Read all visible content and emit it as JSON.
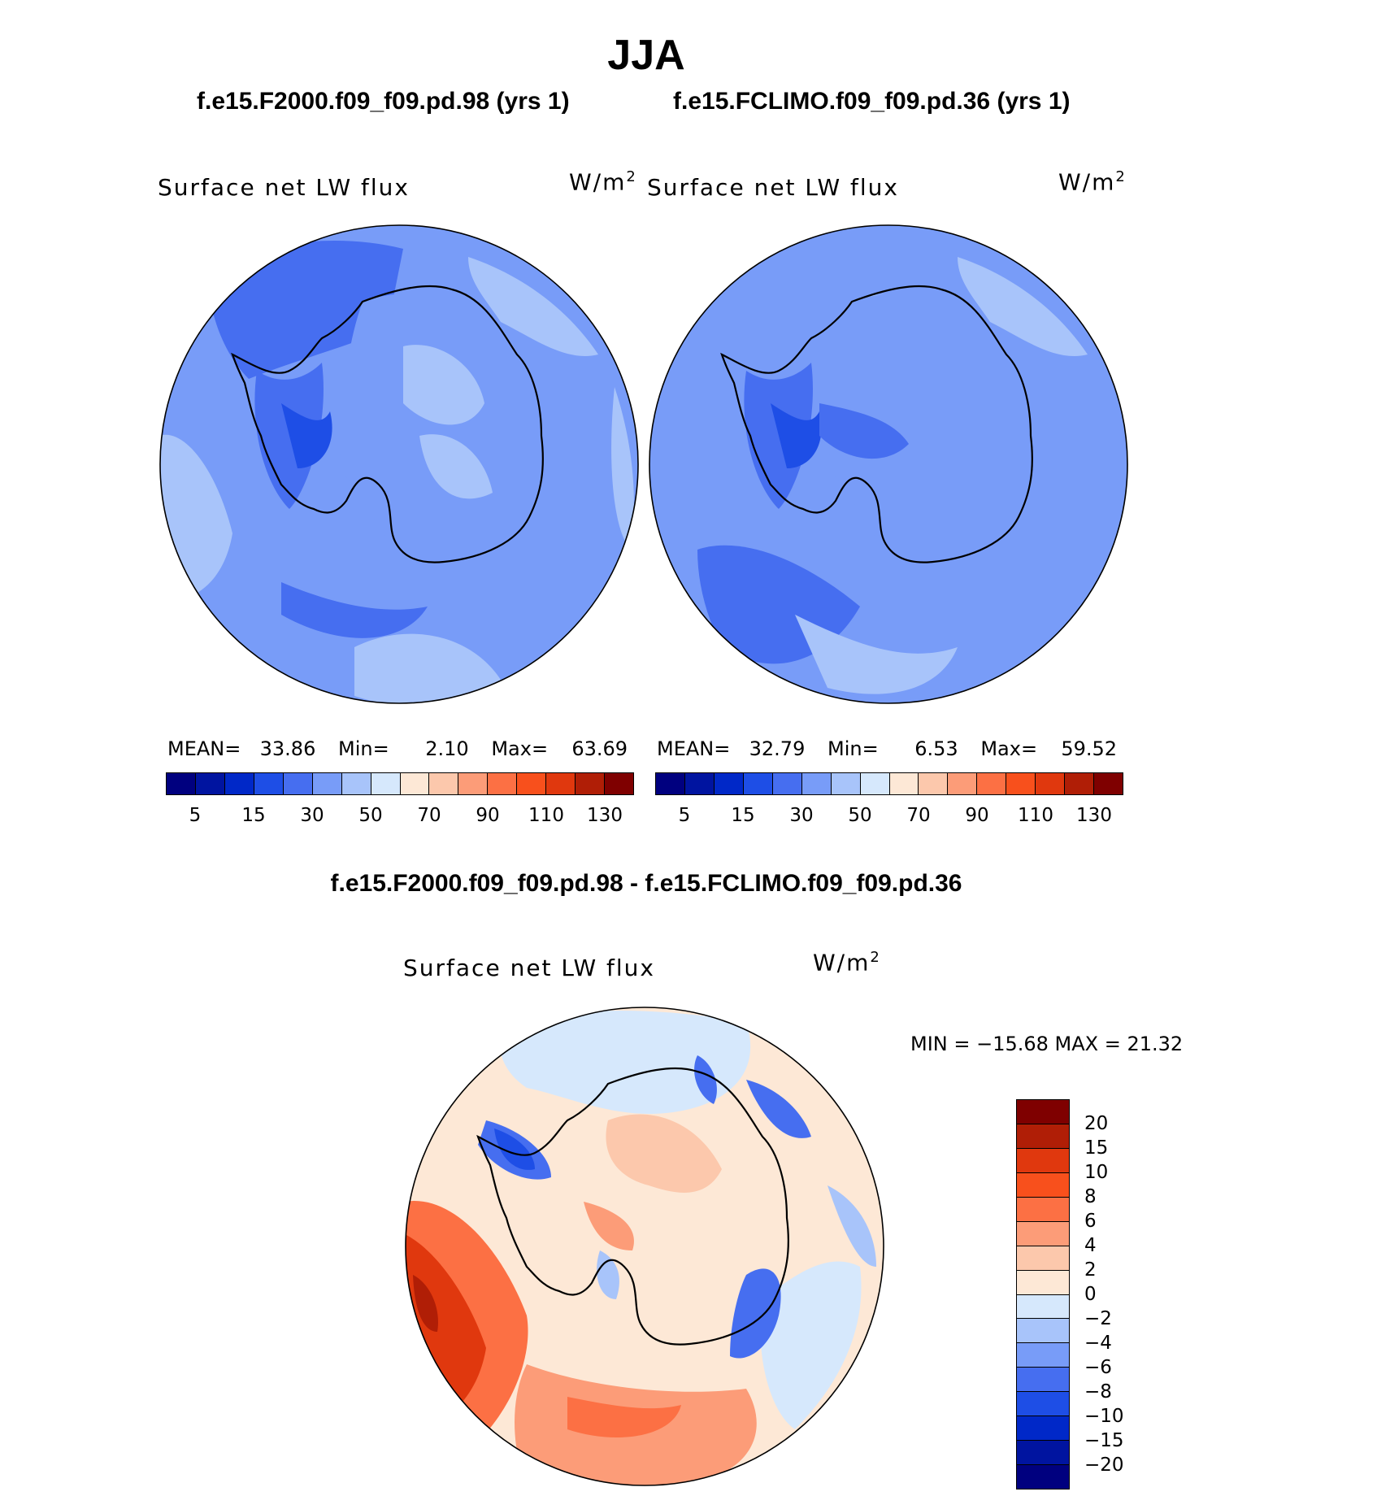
{
  "figure": {
    "title": "JJA",
    "diff_title": "f.e15.F2000.f09_f09.pd.98 - f.e15.FCLIMO.f09_f09.pd.36"
  },
  "panels": [
    {
      "case_title": "f.e15.F2000.f09_f09.pd.98 (yrs 1)",
      "variable": "Surface net LW flux",
      "units": "W/m",
      "units_sup": "2",
      "mean_label": "MEAN=",
      "mean": "33.86",
      "min_label": "Min=",
      "min": "2.10",
      "max_label": "Max=",
      "max": "63.69"
    },
    {
      "case_title": "f.e15.FCLIMO.f09_f09.pd.36 (yrs 1)",
      "variable": "Surface net LW flux",
      "units": "W/m",
      "units_sup": "2",
      "mean_label": "MEAN=",
      "mean": "32.79",
      "min_label": "Min=",
      "min": "6.53",
      "max_label": "Max=",
      "max": "59.52"
    }
  ],
  "diff_panel": {
    "variable": "Surface net LW flux",
    "units": "W/m",
    "units_sup": "2",
    "minmax_text": "MIN = −15.68 MAX =   21.32"
  },
  "colorbars": {
    "main": {
      "colors": [
        "#00007f",
        "#0014a0",
        "#0028c8",
        "#1e4ee6",
        "#466ef0",
        "#789cf8",
        "#a8c4fa",
        "#d6e8fc",
        "#fde8d6",
        "#fcc8ac",
        "#fc9c78",
        "#fc7044",
        "#f8501c",
        "#e0380e",
        "#b01e06",
        "#7f0000"
      ],
      "tick_labels": [
        "5",
        "15",
        "30",
        "50",
        "70",
        "90",
        "110",
        "130"
      ]
    },
    "diff": {
      "colors": [
        "#7f0000",
        "#b01e06",
        "#e0380e",
        "#f8501c",
        "#fc7044",
        "#fc9c78",
        "#fcc8ac",
        "#fde8d6",
        "#d6e8fc",
        "#a8c4fa",
        "#789cf8",
        "#466ef0",
        "#1e4ee6",
        "#0028c8",
        "#0014a0",
        "#00007f"
      ],
      "tick_labels": [
        "20",
        "15",
        "10",
        "8",
        "6",
        "4",
        "2",
        "0",
        "−2",
        "−4",
        "−6",
        "−8",
        "−10",
        "−15",
        "−20"
      ]
    }
  }
}
